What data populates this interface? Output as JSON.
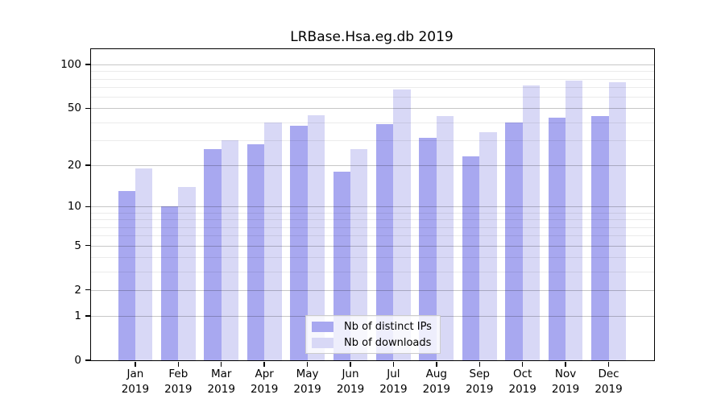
{
  "chart_data": {
    "type": "bar",
    "title": "LRBase.Hsa.eg.db 2019",
    "categories": [
      "Jan",
      "Feb",
      "Mar",
      "Apr",
      "May",
      "Jun",
      "Jul",
      "Aug",
      "Sep",
      "Oct",
      "Nov",
      "Dec"
    ],
    "category_year": "2019",
    "series": [
      {
        "name": "Nb of distinct IPs",
        "color": "#a8a8f0",
        "values": [
          13,
          10,
          26,
          28,
          38,
          18,
          39,
          31,
          23,
          40,
          43,
          44
        ]
      },
      {
        "name": "Nb of downloads",
        "color": "#d8d8f6",
        "values": [
          19,
          14,
          30,
          40,
          45,
          26,
          67,
          44,
          34,
          72,
          78,
          76
        ]
      }
    ],
    "yscale": "log1p",
    "ylim": [
      0,
      127
    ],
    "ytick_values": [
      0,
      1,
      2,
      5,
      10,
      20,
      50,
      100
    ],
    "ytick_labels": [
      "0",
      "1",
      "2",
      "5",
      "10",
      "20",
      "50",
      "100"
    ],
    "minor_gridline_values": [
      3,
      4,
      6,
      7,
      8,
      9,
      30,
      40,
      60,
      70,
      80,
      90
    ],
    "grid": true,
    "legend_position": "inside-bottom-center",
    "xlabel": "",
    "ylabel": ""
  },
  "legend": {
    "items": [
      {
        "label": "Nb of distinct IPs"
      },
      {
        "label": "Nb of downloads"
      }
    ]
  },
  "colors": {
    "bar_distinct_ips": "#a8a8f0",
    "bar_downloads": "#d8d8f6",
    "axis": "#000000",
    "grid_major": "rgba(0,0,0,0.22)",
    "grid_minor": "rgba(0,0,0,0.08)",
    "background": "#ffffff",
    "legend_bg": "rgba(255,255,255,0.8)",
    "legend_border": "#cccccc"
  }
}
